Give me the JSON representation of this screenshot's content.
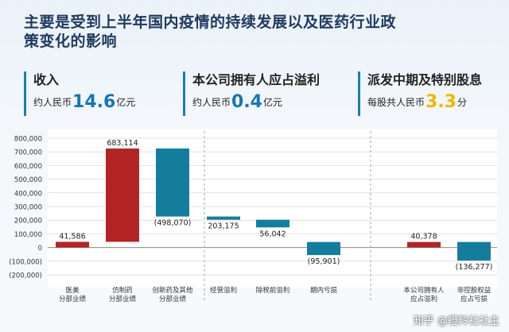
{
  "title": "主要是受到上半年国内疫情的持续发展以及医药行业政策变化的影响",
  "kpis": [
    {
      "label": "收入",
      "prefix": "约人民币",
      "value": "14.6",
      "unit": "亿元",
      "color": "#1477b8"
    },
    {
      "label": "本公司拥有人应占溢利",
      "prefix": "约人民币",
      "value": "0.4",
      "unit": "亿元",
      "color": "#1477b8"
    },
    {
      "label": "派发中期及特别股息",
      "prefix": "每股共人民币",
      "value": "3.3",
      "unit": "分",
      "color": "#f2b600"
    }
  ],
  "watermark": "知乎 @瞪羚社社主",
  "chart_data": {
    "type": "bar",
    "subtype": "waterfall",
    "ylim": [
      -200000,
      800000
    ],
    "yticks": [
      "800,000",
      "700,000",
      "600,000",
      "500,000",
      "400,000",
      "300,000",
      "200,000",
      "100,000",
      "0",
      "(100,000)",
      "(200,000)"
    ],
    "ytick_values": [
      800000,
      700000,
      600000,
      500000,
      400000,
      300000,
      200000,
      100000,
      0,
      -100000,
      -200000
    ],
    "grid": true,
    "colors": {
      "red": "#b32525",
      "teal": "#147d9e"
    },
    "bars": [
      {
        "category": [
          "医美",
          "分部业绩"
        ],
        "start": 0,
        "end": 41586,
        "label": "41,586",
        "color": "red"
      },
      {
        "category": [
          "仿制药",
          "分部业绩"
        ],
        "start": 41586,
        "end": 724700,
        "label": "683,114",
        "color": "red"
      },
      {
        "category": [
          "创新药及其他",
          "分部业绩"
        ],
        "start": 724700,
        "end": 226630,
        "label": "(498,070)",
        "color": "teal"
      },
      {
        "category": [
          "经营溢利"
        ],
        "start": 203175,
        "end": 226630,
        "label": "203,175",
        "color": "teal"
      },
      {
        "category": [
          "除税前溢利"
        ],
        "start": 203175,
        "end": 147133,
        "label": "56,042",
        "color": "teal"
      },
      {
        "category": [
          "期内亏损"
        ],
        "start": 40378,
        "end": -55523,
        "label": "(95,901)",
        "color": "teal"
      },
      {
        "category": [
          "本公司拥有人",
          "应占溢利"
        ],
        "start": 40378,
        "end": 0,
        "label": "40,378",
        "color": "red"
      },
      {
        "category": [
          "非控股权益",
          "应占亏损"
        ],
        "start": 40378,
        "end": -95899,
        "label": "(136,277)",
        "color": "teal"
      }
    ]
  }
}
